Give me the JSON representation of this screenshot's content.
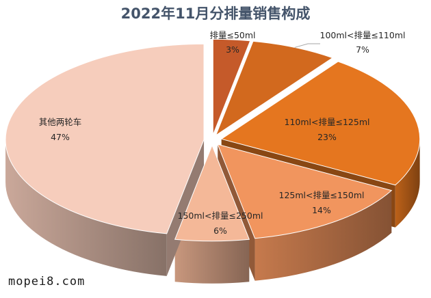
{
  "chart_data": {
    "type": "pie",
    "title": "2022年11月分排量销售构成",
    "categories": [
      "排量≤50ml",
      "100ml<排量≤110ml",
      "110ml<排量≤125ml",
      "125ml<排量≤150ml",
      "150ml<排量≤250ml",
      "其他两轮车"
    ],
    "values": [
      3,
      7,
      23,
      14,
      6,
      47
    ],
    "value_labels": [
      "3%",
      "7%",
      "23%",
      "14%",
      "6%",
      "47%"
    ],
    "colors": [
      "#c55a2a",
      "#d2691e",
      "#e5761f",
      "#f1955e",
      "#f4b898",
      "#f6cdbc"
    ],
    "style": "3d-exploded"
  },
  "watermark": "mopei8.com"
}
